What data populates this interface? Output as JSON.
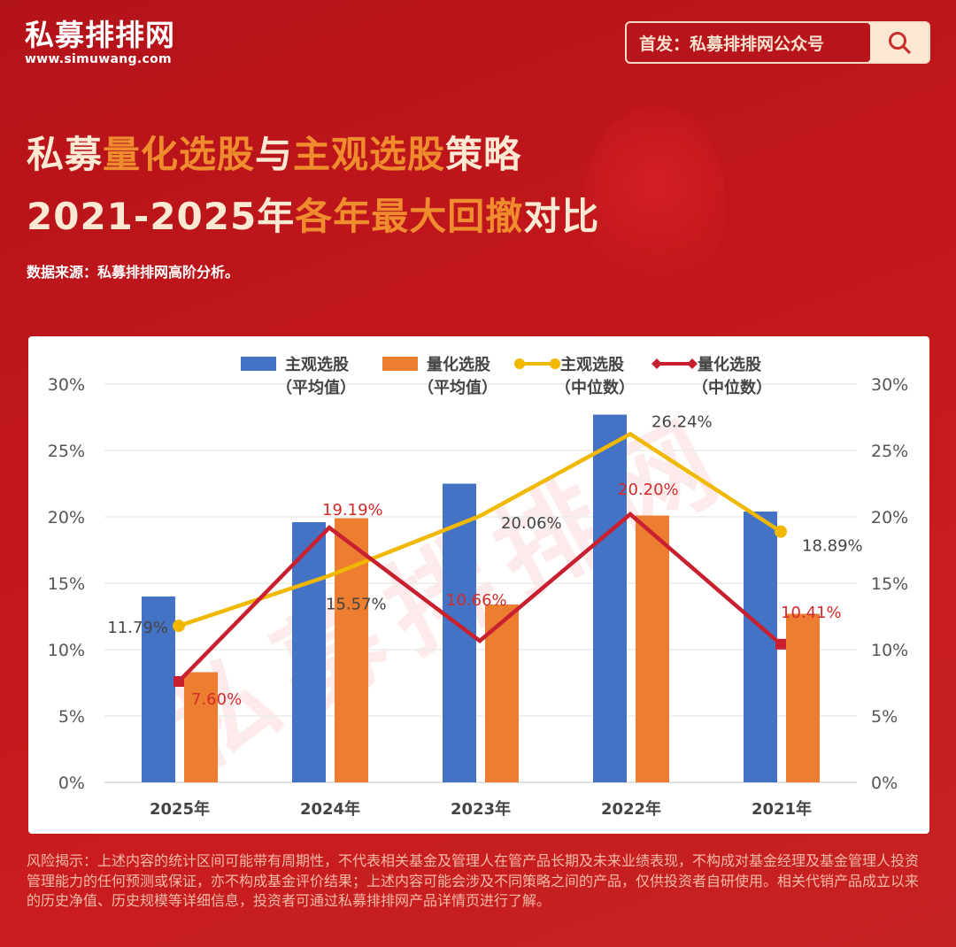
{
  "header": {
    "logo_cn": "私募排排网",
    "logo_url": "www.simuwang.com",
    "search_label": "首发：私募排排网公众号",
    "search_icon": "search-icon"
  },
  "title": {
    "line1": [
      {
        "text": "私募",
        "highlight": false
      },
      {
        "text": "量化选股",
        "highlight": true
      },
      {
        "text": "与",
        "highlight": false
      },
      {
        "text": "主观选股",
        "highlight": true
      },
      {
        "text": "策略",
        "highlight": false
      }
    ],
    "line2": [
      {
        "text": "2021-2025年",
        "highlight": false
      },
      {
        "text": "各年最大回撤",
        "highlight": true
      },
      {
        "text": "对比",
        "highlight": false
      }
    ]
  },
  "source": "数据来源：私募排排网高阶分析。",
  "colors": {
    "bar_subjective": "#4472c4",
    "bar_quant": "#ed7d31",
    "line_subjective": "#f0b800",
    "line_quant": "#c8202f",
    "accent_title": "#ef8d2e"
  },
  "watermark": "私募排排网",
  "chart_data": {
    "type": "bar+line",
    "title": "私募量化选股与主观选股策略2021-2025年各年最大回撤对比",
    "xlabel": "",
    "ylabel": "",
    "ylim": [
      0,
      30
    ],
    "y_ticks": [
      "0%",
      "5%",
      "10%",
      "15%",
      "20%",
      "25%",
      "30%"
    ],
    "y_ticks_right": [
      "0%",
      "5%",
      "10%",
      "15%",
      "20%",
      "25%",
      "30%"
    ],
    "grid": true,
    "legend_position": "top",
    "categories": [
      "2025年",
      "2024年",
      "2023年",
      "2022年",
      "2021年"
    ],
    "series": [
      {
        "name": "主观选股（平均值）",
        "legend_l1": "主观选股",
        "legend_l2": "（平均值）",
        "kind": "bar",
        "color": "#4472c4",
        "values": [
          14.0,
          19.6,
          22.5,
          27.7,
          20.4
        ],
        "labels": [
          "",
          "",
          "",
          "",
          ""
        ]
      },
      {
        "name": "量化选股（平均值）",
        "legend_l1": "量化选股",
        "legend_l2": "（平均值）",
        "kind": "bar",
        "color": "#ed7d31",
        "values": [
          8.3,
          19.9,
          13.4,
          20.1,
          12.7
        ],
        "labels": [
          "",
          "",
          "",
          "",
          ""
        ]
      },
      {
        "name": "主观选股（中位数）",
        "legend_l1": "主观选股",
        "legend_l2": "（中位数）",
        "kind": "line",
        "color": "#f0b800",
        "values": [
          11.79,
          15.57,
          20.06,
          26.24,
          18.89
        ],
        "labels": [
          "11.79%",
          "15.57%",
          "20.06%",
          "26.24%",
          "18.89%"
        ]
      },
      {
        "name": "量化选股（中位数）",
        "legend_l1": "量化选股",
        "legend_l2": "（中位数）",
        "kind": "line",
        "color": "#c8202f",
        "values": [
          7.6,
          19.19,
          10.66,
          20.2,
          10.41
        ],
        "labels": [
          "7.60%",
          "19.19%",
          "10.66%",
          "20.20%",
          "10.41%"
        ]
      }
    ]
  },
  "disclaimer": "风险揭示：上述内容的统计区间可能带有周期性，不代表相关基金及管理人在管产品长期及未来业绩表现，不构成对基金经理及基金管理人投资管理能力的任何预测或保证，亦不构成基金评价结果；上述内容可能会涉及不同策略之间的产品，仅供投资者自研使用。相关代销产品成立以来的历史净值、历史规模等详细信息，投资者可通过私募排排网产品详情页进行了解。"
}
